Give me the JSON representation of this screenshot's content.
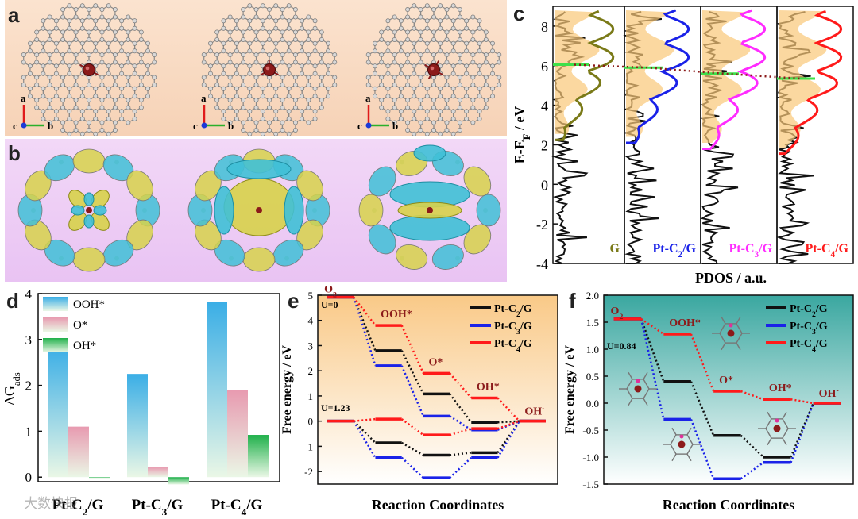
{
  "panel_letters": {
    "a": "a",
    "b": "b",
    "c": "c",
    "d": "d",
    "e": "e",
    "f": "f"
  },
  "axis_label_letters": {
    "a": "a",
    "b": "b",
    "c": "c"
  },
  "watermark": "大数快报",
  "colors": {
    "panel_a_bg": "#fbe3cf",
    "panel_b_bg": "#eecdf5",
    "graphene_atom": "#9a9a9a",
    "pt_atom": "#8b1a1a",
    "charge_yellow": "#d7d24a",
    "charge_cyan": "#3fc0d6",
    "c2": "#1a22e8",
    "c3": "#ff2bff",
    "c4": "#ff1a1a",
    "g": "#7a7a18",
    "pt_c2_black": "#111111"
  },
  "chart_data": [
    {
      "id": "c",
      "type": "line",
      "ylabel": "E-E_F / eV",
      "xlabel": "PDOS / a.u.",
      "ylim": [
        -4,
        9
      ],
      "yticks": [
        -4,
        -2,
        0,
        2,
        4,
        6,
        8
      ],
      "series": [
        {
          "name": "G",
          "color": "#7a7a18",
          "fermi_shift": 6.05
        },
        {
          "name": "Pt-C2/G",
          "color": "#1a22e8",
          "fermi_shift": 5.9
        },
        {
          "name": "Pt-C3/G",
          "color": "#ff2bff",
          "fermi_shift": 5.6
        },
        {
          "name": "Pt-C4/G",
          "color": "#ff1a1a",
          "fermi_shift": 5.35
        }
      ]
    },
    {
      "id": "d",
      "type": "bar",
      "ylabel": "ΔG_ads",
      "categories": [
        "Pt-C2/G",
        "Pt-C3/G",
        "Pt-C4/G"
      ],
      "ylim": [
        -0.1,
        4
      ],
      "yticks": [
        0,
        1,
        2,
        3,
        4
      ],
      "series": [
        {
          "name": "OOH*",
          "values": [
            2.85,
            2.25,
            3.82
          ],
          "color": "#3aaee6"
        },
        {
          "name": "O*",
          "values": [
            1.1,
            0.22,
            1.9
          ],
          "color": "#e89ab0"
        },
        {
          "name": "OH*",
          "values": [
            -0.02,
            -0.16,
            0.92
          ],
          "color": "#1fb04a"
        }
      ]
    },
    {
      "id": "e",
      "type": "line",
      "xlabel": "Reaction Coordinates",
      "ylabel": "Free energy / eV",
      "ylim": [
        -2.5,
        5
      ],
      "yticks": [
        -2,
        -1,
        0,
        1,
        2,
        3,
        4,
        5
      ],
      "states": [
        "O2",
        "OOH*",
        "O*",
        "OH*",
        "OH-"
      ],
      "annotations": [
        "U=0",
        "U=1.23"
      ],
      "series": [
        {
          "name": "Pt-C2/G",
          "color": "#111111",
          "U0": [
            4.92,
            2.8,
            1.08,
            -0.05,
            0
          ],
          "U123": [
            0,
            -0.86,
            -1.35,
            -1.25,
            0
          ]
        },
        {
          "name": "Pt-C3/G",
          "color": "#1a22e8",
          "U0": [
            4.92,
            2.2,
            0.2,
            -0.35,
            0
          ],
          "U123": [
            0,
            -1.45,
            -2.25,
            -1.45,
            0
          ]
        },
        {
          "name": "Pt-C4/G",
          "color": "#ff1a1a",
          "U0": [
            4.92,
            3.8,
            1.9,
            0.92,
            0
          ],
          "U123": [
            0,
            0.08,
            -0.55,
            -0.3,
            0
          ]
        }
      ]
    },
    {
      "id": "f",
      "type": "line",
      "xlabel": "Reaction Coordinates",
      "ylabel": "Free energy / eV",
      "ylim": [
        -1.5,
        2.0
      ],
      "yticks": [
        -1.5,
        -1.0,
        -0.5,
        0.0,
        0.5,
        1.0,
        1.5,
        2.0
      ],
      "states": [
        "O2",
        "OOH*",
        "O*",
        "OH*",
        "OH-"
      ],
      "annotations": [
        "U=0.84"
      ],
      "series": [
        {
          "name": "Pt-C2/G",
          "color": "#111111",
          "values": [
            1.56,
            0.4,
            -0.6,
            -1.0,
            0
          ]
        },
        {
          "name": "Pt-C3/G",
          "color": "#1a22e8",
          "values": [
            1.56,
            -0.3,
            -1.4,
            -1.1,
            0
          ]
        },
        {
          "name": "Pt-C4/G",
          "color": "#ff1a1a",
          "values": [
            1.56,
            1.28,
            0.22,
            0.07,
            0
          ]
        }
      ]
    }
  ]
}
